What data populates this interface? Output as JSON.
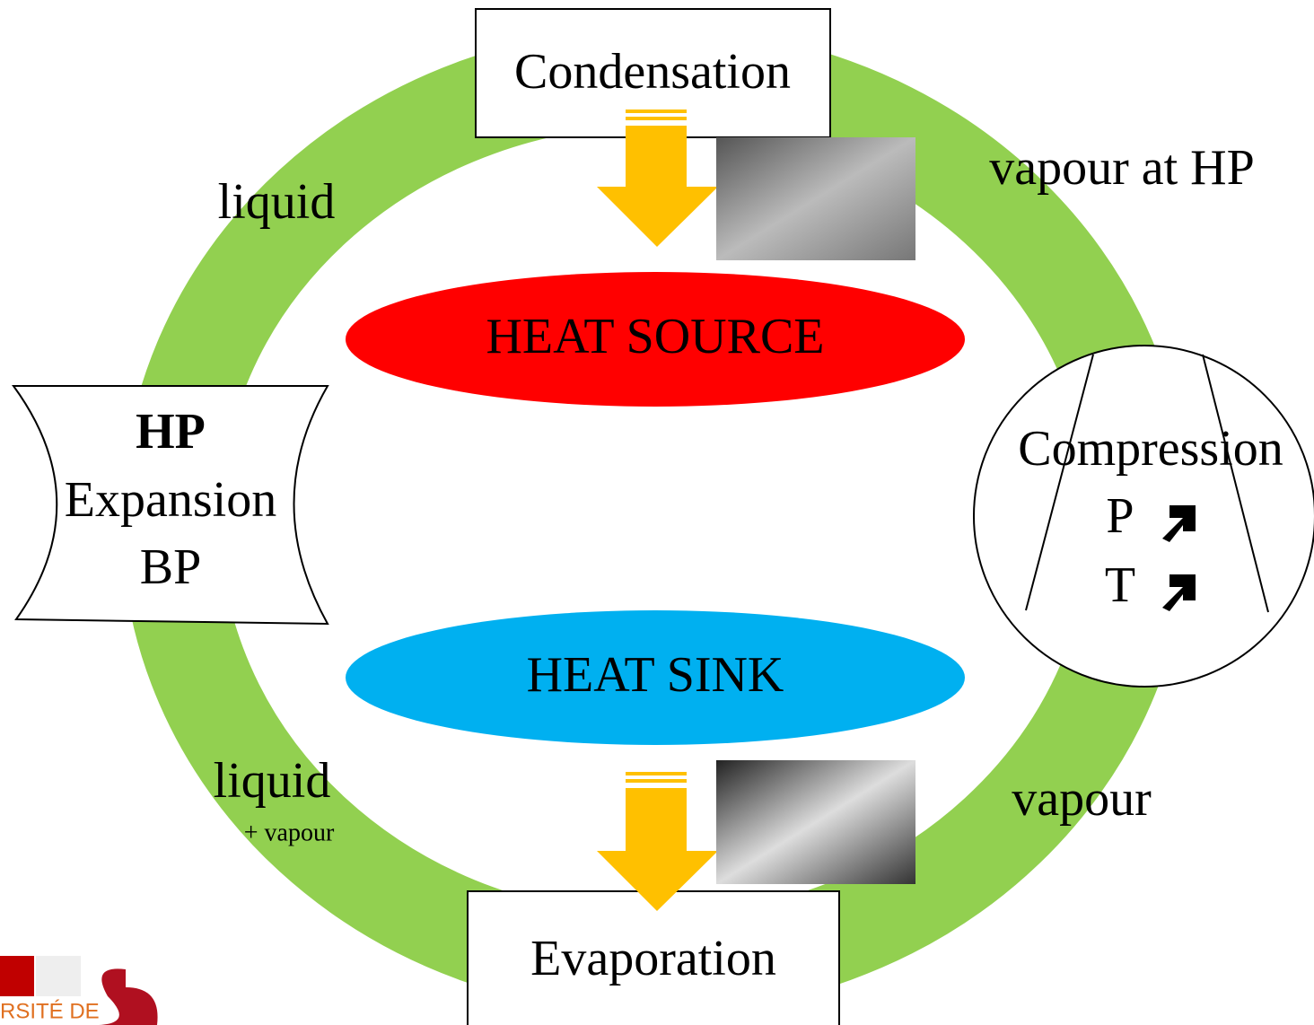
{
  "nodes": {
    "condensation": "Condensation",
    "vapour_hp": "vapour at HP",
    "liquid_top": "liquid",
    "heat_source": "HEAT SOURCE",
    "expansion": {
      "top": "HP",
      "middle": "Expansion",
      "bottom": "BP"
    },
    "compression": {
      "title": "Compression",
      "p": "P",
      "t": "T"
    },
    "heat_sink": "HEAT SINK",
    "liquid_bottom": "liquid",
    "plus_vapour": "+ vapour",
    "vapour": "vapour",
    "evaporation": "Evaporation",
    "logo": "RSITÉ DE"
  }
}
